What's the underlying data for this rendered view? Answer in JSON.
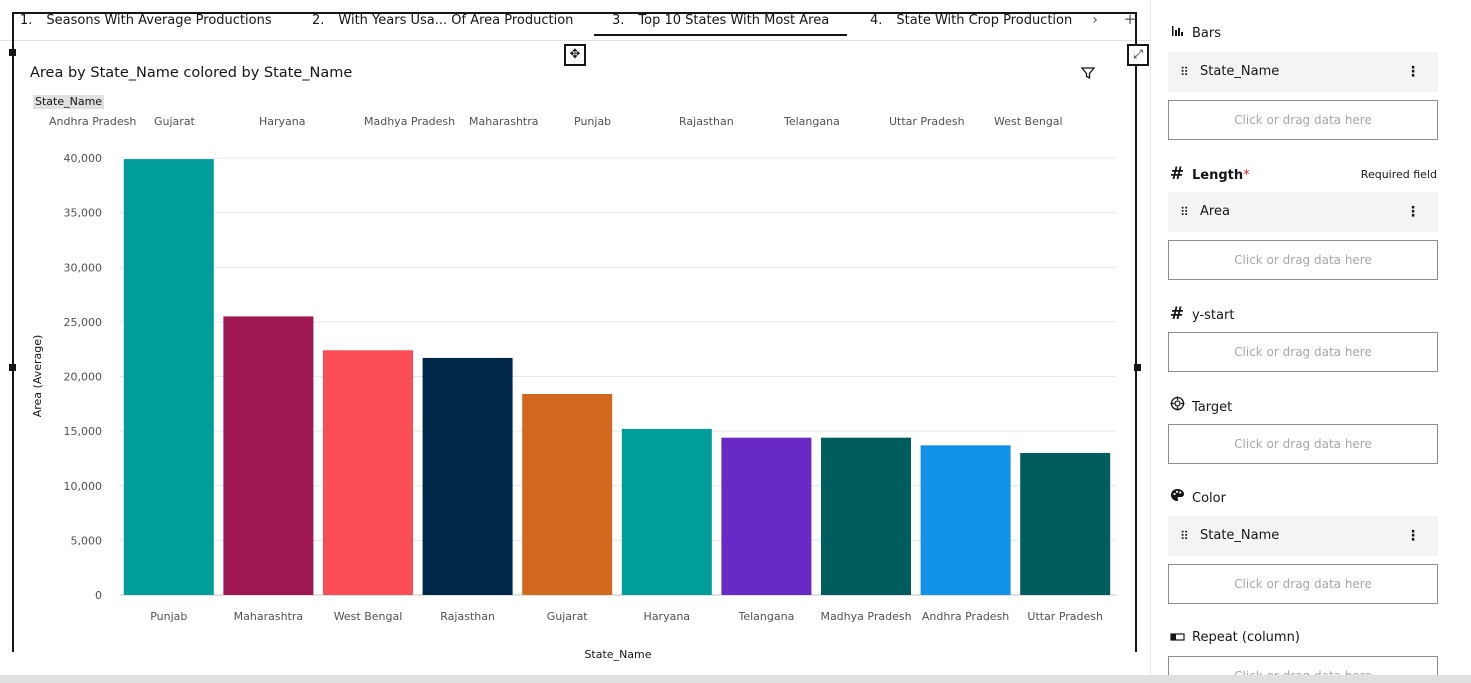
{
  "tabs": [
    {
      "num": "1.",
      "label": "Seasons With Average Productions",
      "active": false
    },
    {
      "num": "2.",
      "label": "With Years Usa... Of Area Production",
      "active": false
    },
    {
      "num": "3.",
      "label": "Top 10 States With Most Area",
      "active": true
    },
    {
      "num": "4.",
      "label": "State With Crop Production",
      "active": false
    }
  ],
  "tab_next_icon": "chevron-right-icon",
  "tab_add_label": "+",
  "chart_data": {
    "type": "bar",
    "title": "Area by State_Name colored by State_Name",
    "xlabel": "State_Name",
    "ylabel": "Area (Average)",
    "ylim": [
      0,
      40000
    ],
    "yticks": [
      "0",
      "5,000",
      "10,000",
      "15,000",
      "20,000",
      "25,000",
      "30,000",
      "35,000",
      "40,000"
    ],
    "grid": true,
    "categories": [
      "Punjab",
      "Maharashtra",
      "West Bengal",
      "Rajasthan",
      "Gujarat",
      "Haryana",
      "Telangana",
      "Madhya Pradesh",
      "Andhra Pradesh",
      "Uttar Pradesh"
    ],
    "values": [
      39900,
      25500,
      22400,
      21700,
      18400,
      15200,
      14400,
      14400,
      13700,
      13000
    ],
    "colors": [
      "#009d9a",
      "#9f1853",
      "#fa4d56",
      "#012749",
      "#d2691e",
      "#009d9a",
      "#6929c4",
      "#005d5d",
      "#1192e8",
      "#005d5d"
    ],
    "legend": {
      "title": "State_Name",
      "placement": "top",
      "items": [
        "Andhra Pradesh",
        "Gujarat",
        "Haryana",
        "Madhya Pradesh",
        "Maharashtra",
        "Punjab",
        "Rajasthan",
        "Telangana",
        "Uttar Pradesh",
        "West Bengal"
      ]
    }
  },
  "panel": {
    "bars": {
      "title": "Bars",
      "icon": "bar-chart-icon",
      "chip": "State_Name"
    },
    "length": {
      "title": "Length",
      "star": "*",
      "required": "Required field",
      "icon": "hash-icon",
      "chip": "Area"
    },
    "ystart": {
      "title": "y-start",
      "icon": "hash-icon"
    },
    "target": {
      "title": "Target",
      "icon": "target-icon"
    },
    "color": {
      "title": "Color",
      "icon": "palette-icon",
      "chip": "State_Name"
    },
    "repeat": {
      "title": "Repeat (column)",
      "icon": "repeat-column-icon"
    },
    "drop_placeholder": "Click or drag data here"
  }
}
